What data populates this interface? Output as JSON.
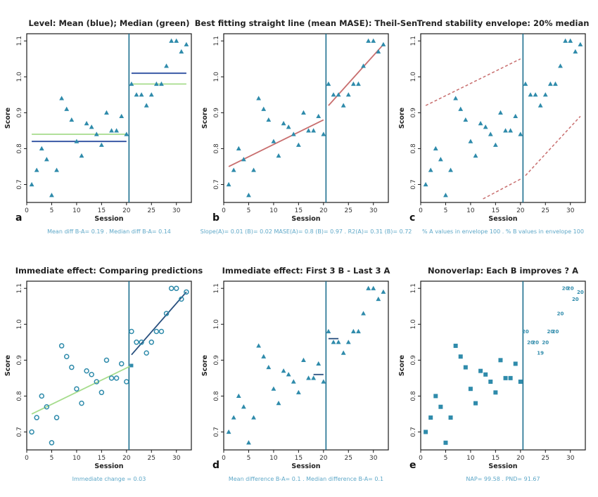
{
  "colors": {
    "marker": "#2f8bab",
    "axis": "#1a1a1a",
    "phase_line": "#1d6f8f",
    "mean_line": "#2d4fa0",
    "median_line": "#a6dc8c",
    "trend_line": "#c86e6e",
    "envelope": "#c86e6e",
    "pred_a": "#a6dc8c",
    "pred_b": "#284f7e",
    "caption": "#5fa8c8"
  },
  "chart_data": [
    {
      "type": "scatter",
      "panel_letter": "a",
      "title": "Level: Mean (blue); Median (green)",
      "xlabel": "Session",
      "ylabel": "Score",
      "xlim": [
        0,
        33
      ],
      "ylim": [
        0.65,
        1.12
      ],
      "xticks": [
        0,
        5,
        10,
        15,
        20,
        25,
        30
      ],
      "yticks": [
        0.7,
        0.8,
        0.9,
        1.0,
        1.1
      ],
      "phase_change_x": 20.5,
      "marker": "triangle",
      "series": [
        {
          "x": [
            1,
            2,
            3,
            4,
            5,
            6,
            7,
            8,
            9,
            10,
            11,
            12,
            13,
            14,
            15,
            16,
            17,
            18,
            19,
            20
          ],
          "y": [
            0.7,
            0.74,
            0.8,
            0.77,
            0.67,
            0.74,
            0.94,
            0.91,
            0.88,
            0.82,
            0.78,
            0.87,
            0.86,
            0.84,
            0.81,
            0.9,
            0.85,
            0.85,
            0.89,
            0.84
          ]
        },
        {
          "x": [
            21,
            22,
            23,
            24,
            25,
            26,
            27,
            28,
            29,
            30,
            31,
            32
          ],
          "y": [
            0.98,
            0.95,
            0.95,
            0.92,
            0.95,
            0.98,
            0.98,
            1.03,
            1.1,
            1.1,
            1.07,
            1.09
          ]
        }
      ],
      "lines": [
        {
          "color": "mean_line",
          "x": [
            1,
            20
          ],
          "y": [
            0.82,
            0.82
          ]
        },
        {
          "color": "median_line",
          "x": [
            1,
            20
          ],
          "y": [
            0.84,
            0.84
          ]
        },
        {
          "color": "mean_line",
          "x": [
            21,
            32
          ],
          "y": [
            1.01,
            1.01
          ]
        },
        {
          "color": "median_line",
          "x": [
            21,
            32
          ],
          "y": [
            0.98,
            0.98
          ]
        }
      ],
      "caption": "Mean diff B-A= 0.19 . Median diff B-A= 0.14"
    },
    {
      "type": "scatter",
      "panel_letter": "b",
      "title": "Best fitting straight line (mean MASE): Theil-Sen",
      "xlabel": "Session",
      "ylabel": "Score",
      "xlim": [
        0,
        33
      ],
      "ylim": [
        0.65,
        1.12
      ],
      "xticks": [
        0,
        5,
        10,
        15,
        20,
        25,
        30
      ],
      "yticks": [
        0.7,
        0.8,
        0.9,
        1.0,
        1.1
      ],
      "phase_change_x": 20.5,
      "marker": "triangle",
      "series": [
        {
          "x": [
            1,
            2,
            3,
            4,
            5,
            6,
            7,
            8,
            9,
            10,
            11,
            12,
            13,
            14,
            15,
            16,
            17,
            18,
            19,
            20
          ],
          "y": [
            0.7,
            0.74,
            0.8,
            0.77,
            0.67,
            0.74,
            0.94,
            0.91,
            0.88,
            0.82,
            0.78,
            0.87,
            0.86,
            0.84,
            0.81,
            0.9,
            0.85,
            0.85,
            0.89,
            0.84
          ]
        },
        {
          "x": [
            21,
            22,
            23,
            24,
            25,
            26,
            27,
            28,
            29,
            30,
            31,
            32
          ],
          "y": [
            0.98,
            0.95,
            0.95,
            0.92,
            0.95,
            0.98,
            0.98,
            1.03,
            1.1,
            1.1,
            1.07,
            1.09
          ]
        }
      ],
      "lines": [
        {
          "color": "trend_line",
          "x": [
            1,
            20
          ],
          "y": [
            0.75,
            0.88
          ]
        },
        {
          "color": "trend_line",
          "x": [
            21,
            32
          ],
          "y": [
            0.92,
            1.09
          ]
        }
      ],
      "caption": "Slope(A)= 0.01 (B)= 0.02 MASE(A)= 0.8 (B)= 0.97 . R2(A)= 0.31 (B)= 0.72"
    },
    {
      "type": "scatter",
      "panel_letter": "c",
      "title": "Trend stability envelope: 20% median",
      "xlabel": "Session",
      "ylabel": "Score",
      "xlim": [
        0,
        33
      ],
      "ylim": [
        0.65,
        1.12
      ],
      "xticks": [
        0,
        5,
        10,
        15,
        20,
        25,
        30
      ],
      "yticks": [
        0.7,
        0.8,
        0.9,
        1.0,
        1.1
      ],
      "phase_change_x": 20.5,
      "marker": "triangle",
      "series": [
        {
          "x": [
            1,
            2,
            3,
            4,
            5,
            6,
            7,
            8,
            9,
            10,
            11,
            12,
            13,
            14,
            15,
            16,
            17,
            18,
            19,
            20
          ],
          "y": [
            0.7,
            0.74,
            0.8,
            0.77,
            0.67,
            0.74,
            0.94,
            0.91,
            0.88,
            0.82,
            0.78,
            0.87,
            0.86,
            0.84,
            0.81,
            0.9,
            0.85,
            0.85,
            0.89,
            0.84
          ]
        },
        {
          "x": [
            21,
            22,
            23,
            24,
            25,
            26,
            27,
            28,
            29,
            30,
            31,
            32
          ],
          "y": [
            0.98,
            0.95,
            0.95,
            0.92,
            0.95,
            0.98,
            0.98,
            1.03,
            1.1,
            1.1,
            1.07,
            1.09
          ]
        }
      ],
      "lines": [
        {
          "color": "envelope",
          "dashed": true,
          "x": [
            1,
            20
          ],
          "y": [
            0.92,
            1.05
          ]
        },
        {
          "color": "envelope",
          "dashed": true,
          "x": [
            12.5,
            20
          ],
          "y": [
            0.66,
            0.715
          ]
        },
        {
          "color": "envelope",
          "dashed": true,
          "x": [
            21,
            32
          ],
          "y": [
            0.725,
            0.89
          ]
        }
      ],
      "caption": "% A values in envelope 100 . % B values in envelope 100"
    },
    {
      "type": "scatter",
      "panel_letter": "",
      "title": "Immediate effect: Comparing predictions",
      "xlabel": "Session",
      "ylabel": "Score",
      "xlim": [
        0,
        33
      ],
      "ylim": [
        0.65,
        1.12
      ],
      "xticks": [
        0,
        5,
        10,
        15,
        20,
        25,
        30
      ],
      "yticks": [
        0.7,
        0.8,
        0.9,
        1.0,
        1.1
      ],
      "phase_change_x": 20.5,
      "marker": "circle",
      "series": [
        {
          "x": [
            1,
            2,
            3,
            4,
            5,
            6,
            7,
            8,
            9,
            10,
            11,
            12,
            13,
            14,
            15,
            16,
            17,
            18,
            19,
            20
          ],
          "y": [
            0.7,
            0.74,
            0.8,
            0.77,
            0.67,
            0.74,
            0.94,
            0.91,
            0.88,
            0.82,
            0.78,
            0.87,
            0.86,
            0.84,
            0.81,
            0.9,
            0.85,
            0.85,
            0.89,
            0.84
          ]
        },
        {
          "x": [
            21,
            22,
            23,
            24,
            25,
            26,
            27,
            28,
            29,
            30,
            31,
            32
          ],
          "y": [
            0.98,
            0.95,
            0.95,
            0.92,
            0.95,
            0.98,
            0.98,
            1.03,
            1.1,
            1.1,
            1.07,
            1.09
          ]
        }
      ],
      "lines": [
        {
          "color": "pred_a",
          "x": [
            1,
            21
          ],
          "y": [
            0.75,
            0.885
          ]
        },
        {
          "color": "pred_b",
          "x": [
            21,
            32
          ],
          "y": [
            0.915,
            1.09
          ]
        }
      ],
      "extra_points": [
        {
          "x": 21,
          "y": 0.885,
          "kind": "square"
        }
      ],
      "caption": "Immediate change = 0.03"
    },
    {
      "type": "scatter",
      "panel_letter": "d",
      "title": "Immediate effect: First 3 B - Last 3 A",
      "xlabel": "Session",
      "ylabel": "Score",
      "xlim": [
        0,
        33
      ],
      "ylim": [
        0.65,
        1.12
      ],
      "xticks": [
        0,
        5,
        10,
        15,
        20,
        25,
        30
      ],
      "yticks": [
        0.7,
        0.8,
        0.9,
        1.0,
        1.1
      ],
      "phase_change_x": 20.5,
      "marker": "triangle",
      "series": [
        {
          "x": [
            1,
            2,
            3,
            4,
            5,
            6,
            7,
            8,
            9,
            10,
            11,
            12,
            13,
            14,
            15,
            16,
            17,
            18,
            19,
            20
          ],
          "y": [
            0.7,
            0.74,
            0.8,
            0.77,
            0.67,
            0.74,
            0.94,
            0.91,
            0.88,
            0.82,
            0.78,
            0.87,
            0.86,
            0.84,
            0.81,
            0.9,
            0.85,
            0.85,
            0.89,
            0.84
          ]
        },
        {
          "x": [
            21,
            22,
            23,
            24,
            25,
            26,
            27,
            28,
            29,
            30,
            31,
            32
          ],
          "y": [
            0.98,
            0.95,
            0.95,
            0.92,
            0.95,
            0.98,
            0.98,
            1.03,
            1.1,
            1.1,
            1.07,
            1.09
          ]
        }
      ],
      "lines": [
        {
          "color": "pred_b",
          "x": [
            18,
            20
          ],
          "y": [
            0.86,
            0.86
          ]
        },
        {
          "color": "pred_b",
          "x": [
            21,
            23
          ],
          "y": [
            0.96,
            0.96
          ]
        }
      ],
      "caption": "Mean difference B-A= 0.1 . Median difference B-A= 0.1"
    },
    {
      "type": "scatter",
      "panel_letter": "e",
      "title": "Nonoverlap: Each B improves ? A",
      "xlabel": "Session",
      "ylabel": "Score",
      "xlim": [
        0,
        33
      ],
      "ylim": [
        0.65,
        1.12
      ],
      "xticks": [
        0,
        5,
        10,
        15,
        20,
        25,
        30
      ],
      "yticks": [
        0.7,
        0.8,
        0.9,
        1.0,
        1.1
      ],
      "phase_change_x": 20.5,
      "marker": "square",
      "series": [
        {
          "x": [
            1,
            2,
            3,
            4,
            5,
            6,
            7,
            8,
            9,
            10,
            11,
            12,
            13,
            14,
            15,
            16,
            17,
            18,
            19,
            20
          ],
          "y": [
            0.7,
            0.74,
            0.8,
            0.77,
            0.67,
            0.74,
            0.94,
            0.91,
            0.88,
            0.82,
            0.78,
            0.87,
            0.86,
            0.84,
            0.81,
            0.9,
            0.85,
            0.85,
            0.89,
            0.84
          ]
        }
      ],
      "b_labels": [
        {
          "x": 21,
          "y": 0.98,
          "text": "20"
        },
        {
          "x": 22,
          "y": 0.95,
          "text": "20"
        },
        {
          "x": 23,
          "y": 0.95,
          "text": "20"
        },
        {
          "x": 24,
          "y": 0.92,
          "text": "19"
        },
        {
          "x": 25,
          "y": 0.95,
          "text": "20"
        },
        {
          "x": 26,
          "y": 0.98,
          "text": "20"
        },
        {
          "x": 27,
          "y": 0.98,
          "text": "20"
        },
        {
          "x": 28,
          "y": 1.03,
          "text": "20"
        },
        {
          "x": 29,
          "y": 1.1,
          "text": "20"
        },
        {
          "x": 30,
          "y": 1.1,
          "text": "20"
        },
        {
          "x": 31,
          "y": 1.07,
          "text": "20"
        },
        {
          "x": 32,
          "y": 1.09,
          "text": "20"
        }
      ],
      "lines": [],
      "caption": "NAP= 99.58 . PND= 91.67"
    }
  ]
}
